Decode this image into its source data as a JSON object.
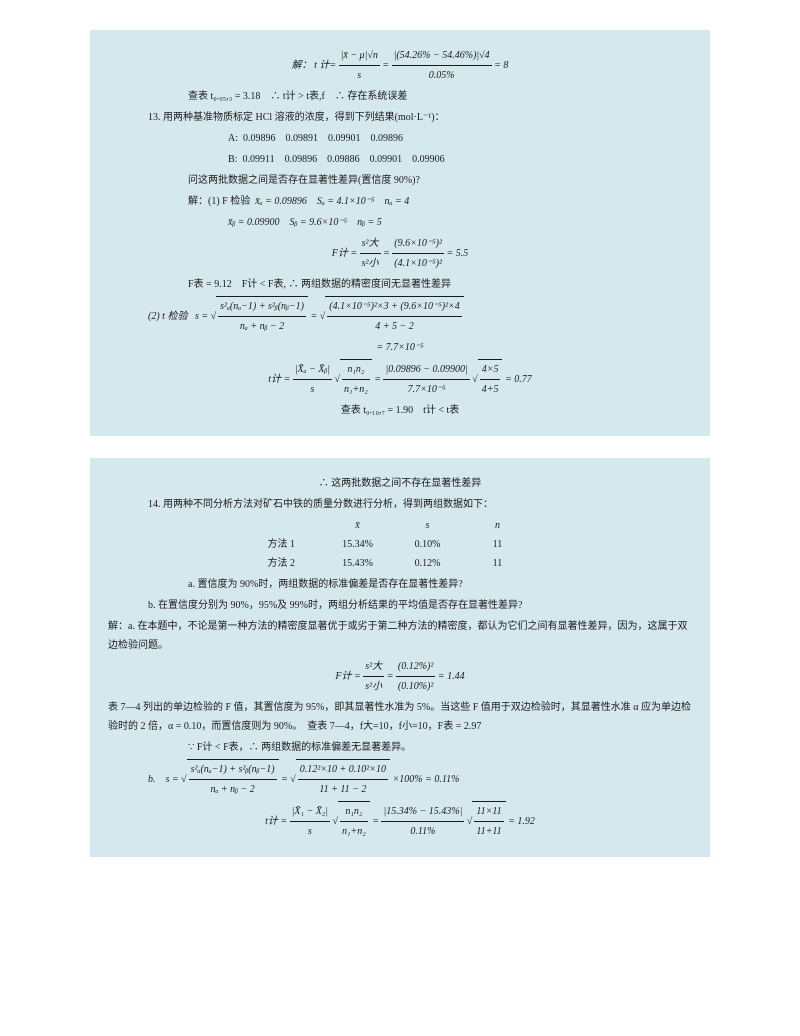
{
  "panel1": {
    "sol_label": "解：",
    "t_calc_label": "t 计=",
    "t_calc_num1": "|x̄ − μ|√n",
    "t_calc_den1": "s",
    "t_calc_num2": "|(54.26% − 54.46%)|√4",
    "t_calc_den2": "0.05%",
    "t_calc_result": "= 8",
    "lookup": "查表 t₀.₀₅,₃ = 3.18　∴ t计 > t表,f　∴ 存在系统误差",
    "q13": "13. 用两种基准物质标定 HCl 溶液的浓度，得到下列结果(mol·L⁻¹)：",
    "rowA_label": "A:",
    "rowA": [
      "0.09896",
      "0.09891",
      "0.09901",
      "0.09896"
    ],
    "rowB_label": "B:",
    "rowB": [
      "0.09911",
      "0.09896",
      "0.09886",
      "0.09901",
      "0.09906"
    ],
    "q13_ask": "问这两批数据之间是否存在显著性差异(置信度 90%)?",
    "f_test_label": "解：(1) F 检验",
    "f_test_xa": "x̄ₐ = 0.09896　Sₐ = 4.1×10⁻⁵　nₐ = 4",
    "f_test_xb": "x̄ᵦ = 0.09900　Sᵦ = 9.6×10⁻⁵　nᵦ = 5",
    "F_calc_label": "F计 =",
    "F_calc_num_outer": "s²大",
    "F_calc_den_outer": "s²小",
    "F_calc_num": "(9.6×10⁻⁵)²",
    "F_calc_den": "(4.1×10⁻⁵)²",
    "F_calc_result": "= 5.5",
    "F_table": "F表 = 9.12　F计 < F表, ∴ 两组数据的精密度间无显著性差异",
    "t_test_label": "(2) t 检验",
    "s_label": "s =",
    "s_num": "s²ₐ(nₐ−1) + s²ᵦ(nᵦ−1)",
    "s_den": "nₐ + nᵦ − 2",
    "s_num2": "(4.1×10⁻⁵)²×3 + (9.6×10⁻⁵)²×4",
    "s_den2": "4 + 5 − 2",
    "s_result": "= 7.7×10⁻⁵",
    "t2_label": "t计 =",
    "t2_num1": "|X̄ₐ − X̄ᵦ|",
    "t2_den1": "s",
    "t2_num2": "n₁n₂",
    "t2_den2": "n₁+n₂",
    "t2_num3": "|0.09896 − 0.09900|",
    "t2_den3": "7.7×10⁻⁵",
    "t2_num4": "4×5",
    "t2_den4": "4+5",
    "t2_result": "= 0.77",
    "t2_lookup": "查表 t₀.₁₀,₇ = 1.90　t计 < t表"
  },
  "panel2": {
    "conclusion": "∴ 这两批数据之间不存在显著性差异",
    "q14": "14. 用两种不同分析方法对矿石中铁的质量分数进行分析，得到两组数据如下：",
    "hdr": [
      "x̄",
      "s",
      "n"
    ],
    "m1_label": "方法 1",
    "m1": [
      "15.34%",
      "0.10%",
      "11"
    ],
    "m2_label": "方法 2",
    "m2": [
      "15.43%",
      "0.12%",
      "11"
    ],
    "qa": "a. 置信度为 90%时，两组数据的标准偏差是否存在显著性差异?",
    "qb": "b. 在置信度分别为 90%，95%及 99%时，两组分析结果的平均值是否存在显著性差异?",
    "sol_a": "解：a. 在本题中，不论是第一种方法的精密度显著优于或劣于第二种方法的精密度，都认为它们之间有显著性差异，因为，这属于双边检验问题。",
    "Fa_label": "F计 =",
    "Fa_num_outer": "s²大",
    "Fa_den_outer": "s²小",
    "Fa_num": "(0.12%)²",
    "Fa_den": "(0.10%)²",
    "Fa_result": "= 1.44",
    "explain": "表 7—4 列出的单边检验的 F 值，其置信度为 95%，即其显著性水准为 5%。当这些 F 值用于双边检验时，其显著性水准 α 应为单边检验时的 2 倍，α = 0.10，而置信度则为 90%。　查表 7—4，f大=10，f小=10，F表 = 2.97",
    "Fa_conclusion": "∵ F计 < F表，∴ 两组数据的标准偏差无显著差异。",
    "sb_label": "b.　s =",
    "sb_num": "s²ₐ(nₐ−1) + s²ᵦ(nᵦ−1)",
    "sb_den": "nₐ + nᵦ − 2",
    "sb_num2": "0.12²×10 + 0.10²×10",
    "sb_den2": "11 + 11 − 2",
    "sb_result": "×100% = 0.11%",
    "tb_label": "t计 =",
    "tb_num1": "|X̄₁ − X̄₂|",
    "tb_den1": "s",
    "tb_num2": "n₁n₂",
    "tb_den2": "n₁+n₂",
    "tb_num3": "|15.34% − 15.43%|",
    "tb_den3": "0.11%",
    "tb_num4": "11×11",
    "tb_den4": "11+11",
    "tb_result": "= 1.92"
  }
}
